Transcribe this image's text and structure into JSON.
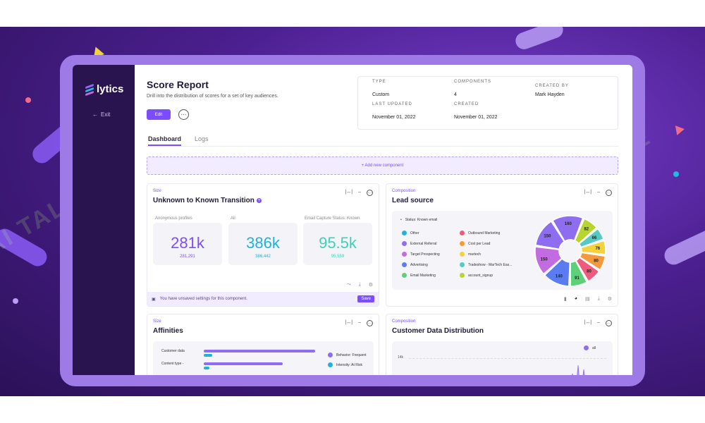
{
  "app": {
    "logo": "lytics",
    "exit_label": "Exit"
  },
  "header": {
    "title": "Score Report",
    "subtitle": "Drill into the distribution of scores for a set of key audiences.",
    "edit_label": "Edit",
    "more_label": "···"
  },
  "meta": {
    "type_label": "TYPE",
    "type_value": "Custom",
    "components_label": "COMPONENTS",
    "components_value": "4",
    "created_by_label": "CREATED BY",
    "created_by_value": "Mark Hayden",
    "updated_label": "LAST UPDATED",
    "updated_value": "November 01, 2022",
    "created_label": "CREATED",
    "created_value": "November 01, 2022"
  },
  "tabs": [
    {
      "label": "Dashboard",
      "active": true
    },
    {
      "label": "Logs",
      "active": false
    }
  ],
  "add_component_label": "+ Add new component",
  "transition_card": {
    "eyebrow": "Size",
    "title": "Unknown to Known Transition",
    "help": "?",
    "stats": [
      {
        "label": "Anonymous profiles",
        "value": "281k",
        "exact": "281,291",
        "color": "#7c4dff"
      },
      {
        "label": "All",
        "value": "386k",
        "exact": "386,442",
        "color": "#1fb3d9"
      },
      {
        "label": "Email Capture Status: Known",
        "value": "95.5k",
        "exact": "95,559",
        "color": "#3fd1b8"
      }
    ],
    "unsaved_text": "You have unsaved settings for this component.",
    "save_label": "Save"
  },
  "lead_card": {
    "eyebrow": "Composition",
    "title": "Lead source",
    "status_label": "Status: Known email",
    "legend": [
      {
        "label": "Other",
        "color": "#1fb3d9"
      },
      {
        "label": "External Referral",
        "color": "#8f6df0"
      },
      {
        "label": "Target Prospecting",
        "color": "#c36be0"
      },
      {
        "label": "Advertising",
        "color": "#5b7cf0"
      },
      {
        "label": "Email Marketing",
        "color": "#5fd07a"
      },
      {
        "label": "Outbound Marketing",
        "color": "#ef5b7c"
      },
      {
        "label": "Cost per Lead",
        "color": "#f59a3c"
      },
      {
        "label": "martech",
        "color": "#f3d23b"
      },
      {
        "label": "Tradeshow - MarTech Eas...",
        "color": "#55c9c2"
      },
      {
        "label": "account_signup",
        "color": "#b6d52e"
      }
    ]
  },
  "affinities_card": {
    "eyebrow": "Size",
    "title": "Affinities",
    "rows": [
      "Customer data",
      "Content type -"
    ],
    "legend": [
      "Behavior: Frequent",
      "Intensity: At Risk"
    ],
    "legend_colors": [
      "#8f6df0",
      "#1fb3d9"
    ]
  },
  "distribution_card": {
    "eyebrow": "Composition",
    "title": "Customer Data Distribution",
    "legend_label": "all",
    "axis_label": "14k"
  },
  "chart_data": {
    "type": "pie",
    "title": "Lead source",
    "slices": [
      {
        "value": 160,
        "color": "#8f6df0"
      },
      {
        "value": 82,
        "color": "#b6d52e"
      },
      {
        "value": 66,
        "color": "#55c9c2"
      },
      {
        "value": 76,
        "color": "#f3d23b"
      },
      {
        "value": 80,
        "color": "#f59a3c"
      },
      {
        "value": 80,
        "color": "#ef5b7c"
      },
      {
        "value": 91,
        "color": "#5fd07a"
      },
      {
        "value": 140,
        "color": "#5b7cf0"
      },
      {
        "value": 150,
        "color": "#c36be0"
      },
      {
        "value": 150,
        "color": "#8f6df0"
      }
    ]
  },
  "watermark": "AI TALENT SPACE"
}
